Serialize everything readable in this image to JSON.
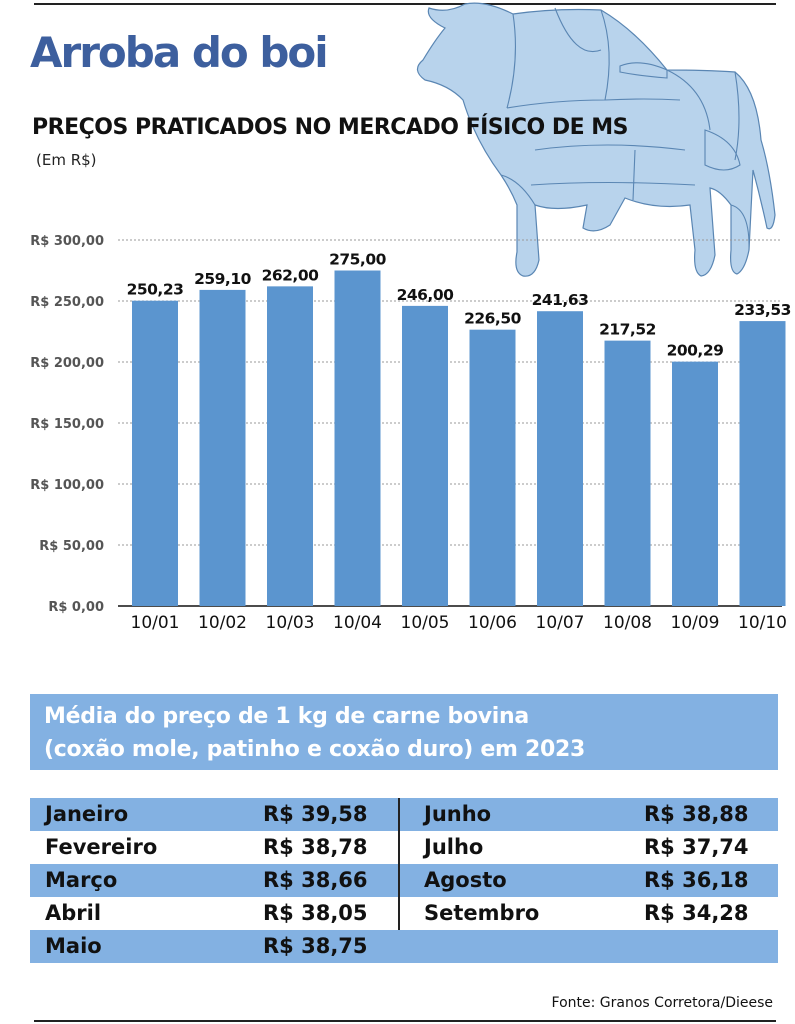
{
  "header": {
    "title": "Arroba do boi",
    "subtitle": "PREÇOS PRATICADOS NO MERCADO FÍSICO DE MS",
    "unit_note": "(Em R$)"
  },
  "chart_data": {
    "type": "bar",
    "title": "PREÇOS PRATICADOS NO MERCADO FÍSICO DE MS",
    "categories": [
      "10/01",
      "10/02",
      "10/03",
      "10/04",
      "10/05",
      "10/06",
      "10/07",
      "10/08",
      "10/09",
      "10/10"
    ],
    "values": [
      250.23,
      259.1,
      262.0,
      275.0,
      246.0,
      226.5,
      241.63,
      217.52,
      200.29,
      233.53
    ],
    "value_labels": [
      "250,23",
      "259,10",
      "262,00",
      "275,00",
      "246,00",
      "226,50",
      "241,63",
      "217,52",
      "200,29",
      "233,53"
    ],
    "y_ticks": [
      0,
      50,
      100,
      150,
      200,
      250,
      300
    ],
    "y_tick_labels": [
      "R$ 0,00",
      "R$ 50,00",
      "R$ 100,00",
      "R$ 150,00",
      "R$ 200,00",
      "R$ 250,00",
      "R$ 300,00"
    ],
    "ylim": [
      0,
      300
    ],
    "grid": true,
    "legend": "none",
    "bar_color": "#5b95cf"
  },
  "table": {
    "header_line1": "Média do preço de 1 kg de carne bovina",
    "header_line2": "(coxão mole, patinho e coxão duro) em 2023",
    "left": [
      {
        "month": "Janeiro",
        "price": "R$ 39,58"
      },
      {
        "month": "Fevereiro",
        "price": "R$ 38,78"
      },
      {
        "month": "Março",
        "price": "R$ 38,66"
      },
      {
        "month": "Abril",
        "price": "R$ 38,05"
      },
      {
        "month": "Maio",
        "price": "R$ 38,75"
      }
    ],
    "right": [
      {
        "month": "Junho",
        "price": "R$ 38,88"
      },
      {
        "month": "Julho",
        "price": "R$ 37,74"
      },
      {
        "month": "Agosto",
        "price": "R$ 36,18"
      },
      {
        "month": "Setembro",
        "price": "R$ 34,28"
      }
    ],
    "shade_color": "#83b1e2"
  },
  "footer": {
    "source": "Fonte: Granos Corretora/Dieese"
  },
  "illustration": "cow-illustration"
}
